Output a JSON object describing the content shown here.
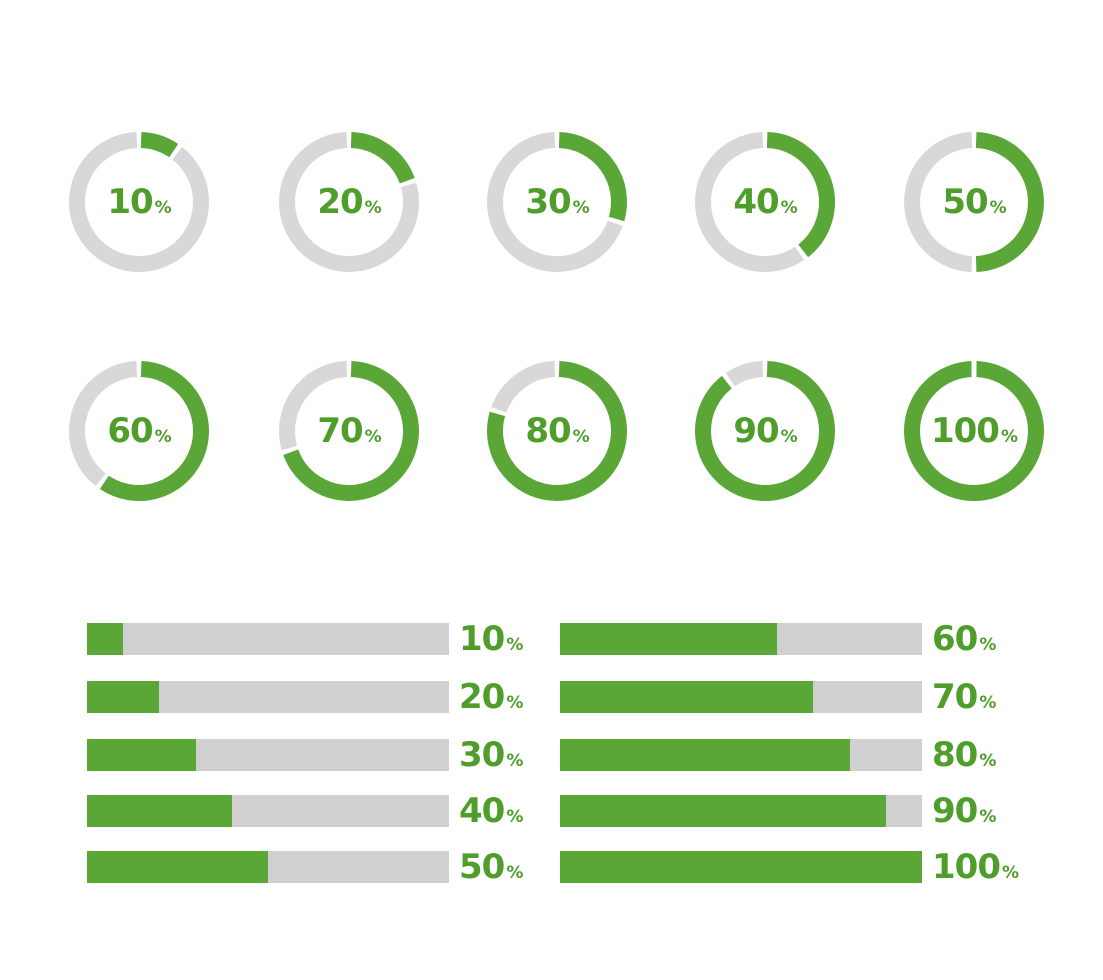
{
  "colors": {
    "accent": "#5aa637",
    "label": "#4f9e2c",
    "track": "#d8d8d8",
    "bar_track": "#d0d0d0",
    "background": "#ffffff"
  },
  "percent_sign": "%",
  "rings": [
    {
      "value": 10,
      "label": "10"
    },
    {
      "value": 20,
      "label": "20"
    },
    {
      "value": 30,
      "label": "30"
    },
    {
      "value": 40,
      "label": "40"
    },
    {
      "value": 50,
      "label": "50"
    },
    {
      "value": 60,
      "label": "60"
    },
    {
      "value": 70,
      "label": "70"
    },
    {
      "value": 80,
      "label": "80"
    },
    {
      "value": 90,
      "label": "90"
    },
    {
      "value": 100,
      "label": "100"
    }
  ],
  "bars": [
    {
      "value": 10,
      "label": "10"
    },
    {
      "value": 20,
      "label": "20"
    },
    {
      "value": 30,
      "label": "30"
    },
    {
      "value": 40,
      "label": "40"
    },
    {
      "value": 50,
      "label": "50"
    },
    {
      "value": 60,
      "label": "60"
    },
    {
      "value": 70,
      "label": "70"
    },
    {
      "value": 80,
      "label": "80"
    },
    {
      "value": 90,
      "label": "90"
    },
    {
      "value": 100,
      "label": "100"
    }
  ]
}
